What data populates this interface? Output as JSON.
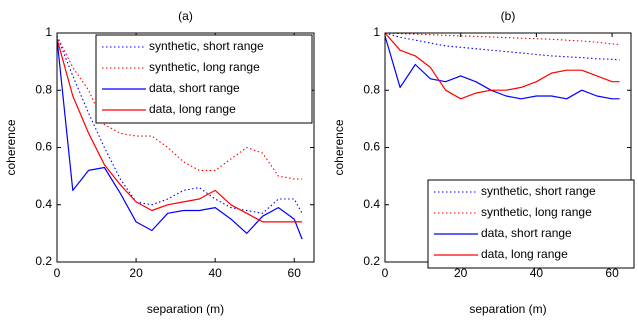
{
  "chart_data": [
    {
      "type": "line",
      "title": "(a)",
      "xlabel": "separation (m)",
      "ylabel": "coherence",
      "xlim": [
        0,
        65
      ],
      "ylim": [
        0.2,
        1.0
      ],
      "xticks": [
        0,
        20,
        40,
        60
      ],
      "yticks": [
        0.2,
        0.4,
        0.6,
        0.8,
        1.0
      ],
      "xtick_labels": [
        "0",
        "20",
        "40",
        "60"
      ],
      "ytick_labels": [
        "0.2",
        "0.4",
        "0.6",
        "0.8",
        "1"
      ],
      "grid": false,
      "legend_position": "top-right",
      "series": [
        {
          "name": "synthetic, short range",
          "color": "#0000ff",
          "dash": "dotted",
          "x": [
            0,
            4,
            8,
            12,
            16,
            20,
            24,
            28,
            32,
            36,
            40,
            44,
            48,
            52,
            56,
            60,
            62
          ],
          "y": [
            0.99,
            0.85,
            0.72,
            0.6,
            0.49,
            0.41,
            0.4,
            0.42,
            0.45,
            0.46,
            0.42,
            0.39,
            0.38,
            0.37,
            0.42,
            0.42,
            0.37
          ]
        },
        {
          "name": "synthetic, long range",
          "color": "#ff0000",
          "dash": "dotted",
          "x": [
            0,
            4,
            8,
            12,
            16,
            20,
            24,
            28,
            32,
            36,
            40,
            44,
            48,
            52,
            56,
            60,
            62
          ],
          "y": [
            0.99,
            0.88,
            0.8,
            0.68,
            0.65,
            0.64,
            0.64,
            0.6,
            0.55,
            0.52,
            0.52,
            0.56,
            0.6,
            0.58,
            0.5,
            0.49,
            0.49
          ]
        },
        {
          "name": "data, short range",
          "color": "#0000ff",
          "dash": "solid",
          "x": [
            0,
            4,
            8,
            12,
            16,
            20,
            24,
            28,
            32,
            36,
            40,
            44,
            48,
            52,
            56,
            60,
            62
          ],
          "y": [
            0.98,
            0.45,
            0.52,
            0.53,
            0.44,
            0.34,
            0.31,
            0.37,
            0.38,
            0.38,
            0.39,
            0.35,
            0.3,
            0.36,
            0.39,
            0.35,
            0.28
          ]
        },
        {
          "name": "data, long range",
          "color": "#ff0000",
          "dash": "solid",
          "x": [
            0,
            4,
            8,
            12,
            16,
            20,
            24,
            28,
            32,
            36,
            40,
            44,
            48,
            52,
            56,
            60,
            62
          ],
          "y": [
            0.98,
            0.78,
            0.65,
            0.54,
            0.47,
            0.41,
            0.38,
            0.4,
            0.41,
            0.42,
            0.45,
            0.4,
            0.37,
            0.34,
            0.34,
            0.34,
            0.34
          ]
        }
      ]
    },
    {
      "type": "line",
      "title": "(b)",
      "xlabel": "separation (m)",
      "ylabel": "coherence",
      "xlim": [
        0,
        65
      ],
      "ylim": [
        0.2,
        1.0
      ],
      "xticks": [
        0,
        20,
        40,
        60
      ],
      "yticks": [
        0.2,
        0.4,
        0.6,
        0.8,
        1.0
      ],
      "xtick_labels": [
        "0",
        "20",
        "40",
        "60"
      ],
      "ytick_labels": [
        "0.2",
        "0.4",
        "0.6",
        "0.8",
        "1"
      ],
      "grid": false,
      "legend_position": "bottom-right",
      "series": [
        {
          "name": "synthetic, short range",
          "color": "#0000ff",
          "dash": "dotted",
          "x": [
            0,
            4,
            8,
            12,
            16,
            20,
            24,
            28,
            32,
            36,
            40,
            44,
            48,
            52,
            56,
            60,
            62
          ],
          "y": [
            1.0,
            0.985,
            0.975,
            0.965,
            0.955,
            0.95,
            0.945,
            0.94,
            0.935,
            0.93,
            0.925,
            0.92,
            0.917,
            0.914,
            0.91,
            0.908,
            0.906
          ]
        },
        {
          "name": "synthetic, long range",
          "color": "#ff0000",
          "dash": "dotted",
          "x": [
            0,
            4,
            8,
            12,
            16,
            20,
            24,
            28,
            32,
            36,
            40,
            44,
            48,
            52,
            56,
            60,
            62
          ],
          "y": [
            1.0,
            0.998,
            0.996,
            0.994,
            0.992,
            0.99,
            0.988,
            0.986,
            0.984,
            0.982,
            0.98,
            0.978,
            0.975,
            0.972,
            0.968,
            0.962,
            0.96
          ]
        },
        {
          "name": "data, short range",
          "color": "#0000ff",
          "dash": "solid",
          "x": [
            0,
            4,
            8,
            12,
            16,
            20,
            24,
            28,
            32,
            36,
            40,
            44,
            48,
            52,
            56,
            60,
            62
          ],
          "y": [
            0.99,
            0.81,
            0.89,
            0.84,
            0.83,
            0.85,
            0.83,
            0.8,
            0.78,
            0.77,
            0.78,
            0.78,
            0.77,
            0.8,
            0.78,
            0.77,
            0.77
          ]
        },
        {
          "name": "data, long range",
          "color": "#ff0000",
          "dash": "solid",
          "x": [
            0,
            4,
            8,
            12,
            16,
            20,
            24,
            28,
            32,
            36,
            40,
            44,
            48,
            52,
            56,
            60,
            62
          ],
          "y": [
            1.0,
            0.94,
            0.92,
            0.88,
            0.8,
            0.77,
            0.79,
            0.8,
            0.8,
            0.81,
            0.83,
            0.86,
            0.87,
            0.87,
            0.85,
            0.83,
            0.83
          ]
        }
      ]
    }
  ]
}
